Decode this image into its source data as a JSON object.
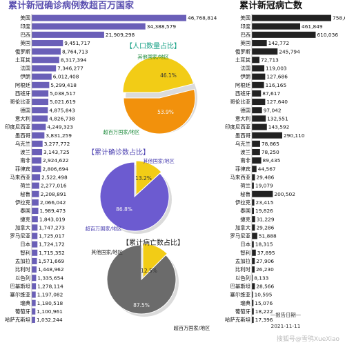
{
  "colors": {
    "left_title": "#5a4fb0",
    "left_bar": "#6a5fb8",
    "right_bar": "#222222",
    "yellow": "#f2cc16",
    "orange": "#f2910c",
    "purple": "#6c5bd0",
    "gray": "#6b6b6b",
    "pie1_title": "#16a085",
    "pie2_title": "#4a3fb0",
    "pie3_title": "#222222",
    "label_green": "#1b8a3a",
    "label_purple": "#4a3fb0"
  },
  "chart_data": [
    {
      "type": "bar",
      "orientation": "horizontal",
      "title": "累计新冠确诊病例数超百万国家",
      "categories": [
        "美国",
        "印度",
        "巴西",
        "英国",
        "俄罗斯",
        "土耳其",
        "法国",
        "伊朗",
        "阿根廷",
        "西班牙",
        "哥伦比亚",
        "德国",
        "意大利",
        "印度尼西亚",
        "墨西哥",
        "乌克兰",
        "波兰",
        "南非",
        "菲律宾",
        "马来西亚",
        "荷兰",
        "秘鲁",
        "伊拉克",
        "泰国",
        "捷克",
        "加拿大",
        "罗马尼亚",
        "日本",
        "智利",
        "孟加拉",
        "比利时",
        "以色列",
        "巴基斯坦",
        "塞尔维亚",
        "瑞典",
        "葡萄牙",
        "哈萨克斯坦"
      ],
      "values": [
        46768814,
        34388579,
        21909298,
        9451717,
        8764713,
        8317394,
        7346277,
        6012408,
        5299418,
        5038517,
        5021619,
        4875843,
        4826738,
        4249323,
        3831259,
        3277772,
        3143725,
        2924622,
        2806694,
        2522498,
        2277016,
        2208891,
        2066042,
        1989473,
        1843019,
        1747273,
        1725017,
        1724172,
        1715352,
        1571669,
        1448962,
        1335654,
        1278114,
        1197082,
        1180518,
        1100961,
        1032244
      ],
      "labels": [
        "46,768,814",
        "34,388,579",
        "21,909,298",
        "9,451,717",
        "8,764,713",
        "8,317,394",
        "7,346,277",
        "6,012,408",
        "5,299,418",
        "5,038,517",
        "5,021,619",
        "4,875,843",
        "4,826,738",
        "4,249,323",
        "3,831,259",
        "3,277,772",
        "3,143,725",
        "2,924,622",
        "2,806,694",
        "2,522,498",
        "2,277,016",
        "2,208,891",
        "2,066,042",
        "1,989,473",
        "1,843,019",
        "1,747,273",
        "1,725,017",
        "1,724,172",
        "1,715,352",
        "1,571,669",
        "1,448,962",
        "1,335,654",
        "1,278,114",
        "1,197,082",
        "1,180,518",
        "1,100,961",
        "1,032,244"
      ]
    },
    {
      "type": "bar",
      "orientation": "horizontal",
      "title": "累计新冠病亡数",
      "categories": [
        "美国",
        "印度",
        "巴西",
        "英国",
        "俄罗斯",
        "土耳其",
        "法国",
        "伊朗",
        "阿根廷",
        "西班牙",
        "哥伦比亚",
        "德国",
        "意大利",
        "印度尼西亚",
        "墨西哥",
        "乌克兰",
        "波兰",
        "南非",
        "菲律宾",
        "马来西亚",
        "荷兰",
        "秘鲁",
        "伊拉克",
        "泰国",
        "捷克",
        "加拿大",
        "罗马尼亚",
        "日本",
        "智利",
        "孟加拉",
        "比利时",
        "以色列",
        "巴基斯坦",
        "塞尔维亚",
        "瑞典",
        "葡萄牙",
        "哈萨克斯坦"
      ],
      "values": [
        758646,
        461849,
        610036,
        142772,
        245794,
        72713,
        119003,
        127686,
        116165,
        87617,
        127640,
        97042,
        132551,
        143592,
        290110,
        78865,
        78250,
        89435,
        44567,
        29486,
        19079,
        200502,
        23415,
        19826,
        31229,
        29286,
        51888,
        18315,
        37895,
        27906,
        26230,
        8133,
        28566,
        10595,
        15076,
        18222,
        17396
      ],
      "labels": [
        "758,646",
        "461,849",
        "610,036",
        "142,772",
        "245,794",
        "72,713",
        "119,003",
        "127,686",
        "116,165",
        "87,617",
        "127,640",
        "97,042",
        "132,551",
        "143,592",
        "290,110",
        "78,865",
        "78,250",
        "89,435",
        "44,567",
        "29,486",
        "19,079",
        "200,502",
        "23,415",
        "19,826",
        "31,229",
        "29,286",
        "51,888",
        "18,315",
        "37,895",
        "27,906",
        "26,230",
        "8,133",
        "28,566",
        "10,595",
        "15,076",
        "18,222",
        "17,396"
      ]
    },
    {
      "type": "pie",
      "title": "【人口数量占比】",
      "labels": [
        "其他国家/地区",
        "超百万国家/地区"
      ],
      "values": [
        46.1,
        53.9
      ],
      "pct_labels": [
        "46.1%",
        "53.9%"
      ]
    },
    {
      "type": "pie",
      "title": "【累计确诊数占比】",
      "labels": [
        "其他国家/地区",
        "超百万国家/地区"
      ],
      "values": [
        13.2,
        86.8
      ],
      "pct_labels": [
        "13.2%",
        "86.8%"
      ]
    },
    {
      "type": "pie",
      "title": "【累计病亡数占比】",
      "labels": [
        "其他国家/地区",
        "超百万国家/地区"
      ],
      "values": [
        12.5,
        87.5
      ],
      "pct_labels": [
        "12.5%",
        "87.5%"
      ]
    }
  ],
  "footer": {
    "report_date_label": "—报告日期—",
    "report_date": "2021-11-11",
    "watermark": "搜狐号@雪鸮XueXiao"
  }
}
